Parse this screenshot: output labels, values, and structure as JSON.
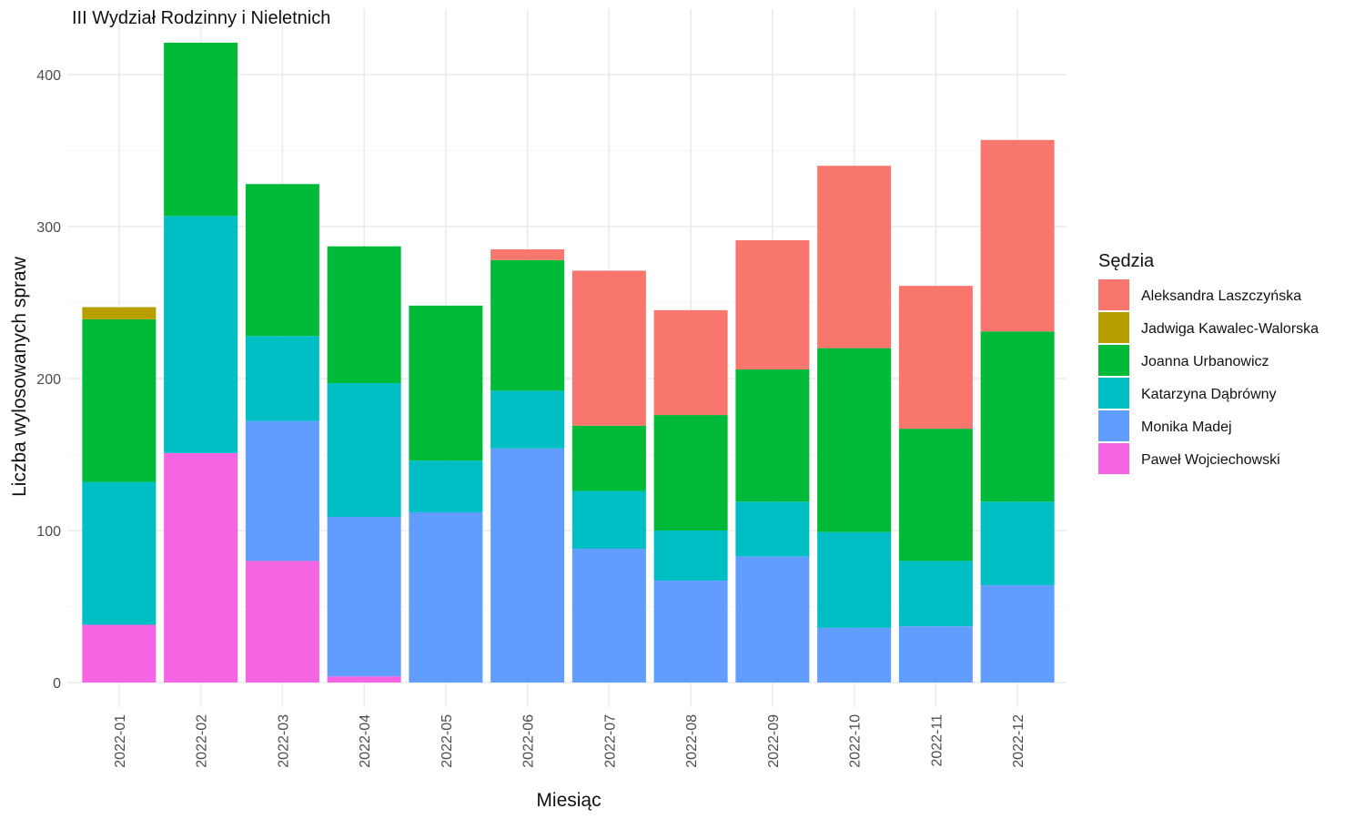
{
  "chart_data": {
    "type": "bar",
    "stacked": true,
    "title": "III Wydział Rodzinny i Nieletnich",
    "xlabel": "Miesiąc",
    "ylabel": "Liczba wylosowanych spraw",
    "ylim": [
      0,
      425
    ],
    "yticks": [
      0,
      100,
      200,
      300,
      400
    ],
    "grid": true,
    "legend": {
      "title": "Sędzia",
      "placement": "right"
    },
    "categories": [
      "2022-01",
      "2022-02",
      "2022-03",
      "2022-04",
      "2022-05",
      "2022-06",
      "2022-07",
      "2022-08",
      "2022-09",
      "2022-10",
      "2022-11",
      "2022-12"
    ],
    "stack_order_bottom_to_top": [
      "Paweł Wojciechowski",
      "Monika Madej",
      "Katarzyna Dąbrówny",
      "Joanna Urbanowicz",
      "Jadwiga Kawalec-Walorska",
      "Aleksandra Laszczyńska"
    ],
    "series": [
      {
        "name": "Aleksandra Laszczyńska",
        "color": "#F8766D",
        "values": [
          0,
          0,
          0,
          0,
          0,
          7,
          102,
          69,
          85,
          120,
          94,
          126
        ]
      },
      {
        "name": "Jadwiga Kawalec-Walorska",
        "color": "#B79F00",
        "values": [
          8,
          0,
          0,
          0,
          0,
          0,
          0,
          0,
          0,
          0,
          0,
          0
        ]
      },
      {
        "name": "Joanna Urbanowicz",
        "color": "#00BA38",
        "values": [
          107,
          114,
          100,
          90,
          102,
          86,
          43,
          76,
          87,
          121,
          87,
          112
        ]
      },
      {
        "name": "Katarzyna Dąbrówny",
        "color": "#00BFC4",
        "values": [
          94,
          156,
          56,
          88,
          34,
          38,
          38,
          33,
          36,
          63,
          43,
          55
        ]
      },
      {
        "name": "Monika Madej",
        "color": "#619CFF",
        "values": [
          0,
          0,
          92,
          105,
          112,
          154,
          88,
          67,
          83,
          36,
          37,
          64
        ]
      },
      {
        "name": "Paweł Wojciechowski",
        "color": "#F564E3",
        "values": [
          38,
          151,
          80,
          4,
          0,
          0,
          0,
          0,
          0,
          0,
          0,
          0
        ]
      }
    ]
  }
}
